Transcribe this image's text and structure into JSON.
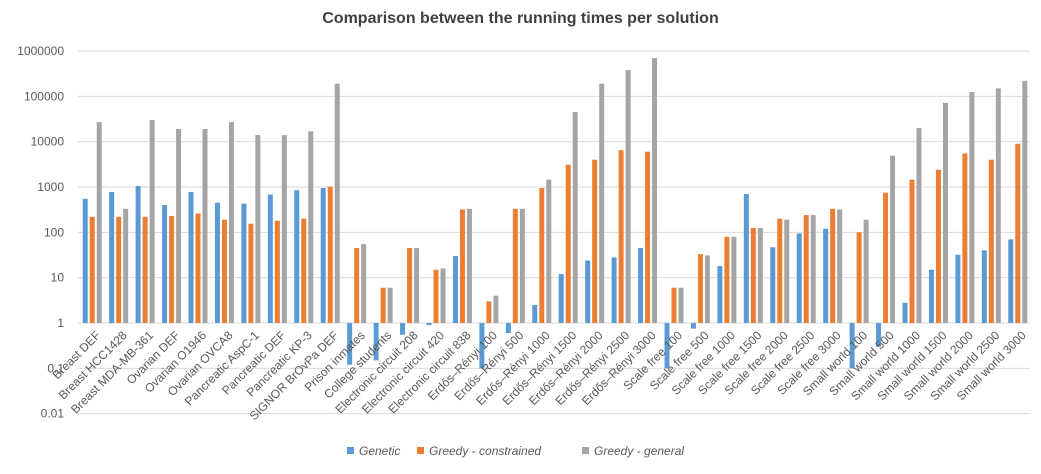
{
  "chart_data": {
    "type": "bar",
    "title": "Comparison between the running times per solution",
    "xlabel": "",
    "ylabel": "",
    "y_scale": "log",
    "ylim": [
      0.01,
      1000000
    ],
    "y_ticks": [
      0.01,
      0.1,
      1,
      10,
      100,
      1000,
      10000,
      100000,
      1000000
    ],
    "y_tick_labels": [
      "0.01",
      "0.1",
      "1",
      "10",
      "100",
      "1000",
      "10000",
      "100000",
      "1000000"
    ],
    "grid": true,
    "legend_position": "bottom",
    "categories": [
      "Breast DEF",
      "Breast HCC1428",
      "Breast MDA-MB-361",
      "Ovarian DEF",
      "Ovarian O1946",
      "Ovarian OVCA8",
      "Pancreatic AspC-1",
      "Pancreatic DEF",
      "Pancreatic KP-3",
      "SIGNOR BrOvPa DEF",
      "Prison inmates",
      "College students",
      "Electronic circuit 208",
      "Electronic circuit 420",
      "Electronic circuit 838",
      "Erdős–Rényi 100",
      "Erdős–Rényi 500",
      "Erdős–Rényi 1000",
      "Erdős–Rényi 1500",
      "Erdős–Rényi 2000",
      "Erdős–Rényi 2500",
      "Erdős–Rényi 3000",
      "Scale free 100",
      "Scale free 500",
      "Scale free 1000",
      "Scale free 1500",
      "Scale free 2000",
      "Scale free 2500",
      "Scale free 3000",
      "Small world 100",
      "Small world 500",
      "Small world 1000",
      "Small world 1500",
      "Small world 2000",
      "Small world 2500",
      "Small world 3000"
    ],
    "series": [
      {
        "name": "Genetic",
        "color": "#5B9BD5",
        "values": [
          550,
          780,
          1050,
          400,
          780,
          450,
          430,
          680,
          850,
          950,
          0.12,
          0.15,
          0.55,
          0.9,
          30,
          0.1,
          0.6,
          2.5,
          12,
          24,
          28,
          45,
          0.1,
          0.75,
          18,
          700,
          47,
          95,
          120,
          0.1,
          0.3,
          2.8,
          15,
          32,
          40,
          70
        ]
      },
      {
        "name": "Greedy - constrained",
        "color": "#ED7D31",
        "values": [
          220,
          220,
          220,
          230,
          260,
          190,
          155,
          180,
          200,
          1020,
          45,
          6,
          45,
          15,
          320,
          3,
          330,
          950,
          3100,
          4000,
          6500,
          6000,
          6,
          33,
          80,
          125,
          200,
          240,
          330,
          100,
          750,
          1450,
          2400,
          5500,
          4000,
          9000
        ]
      },
      {
        "name": "Greedy - general",
        "color": "#A5A5A5",
        "values": [
          27000,
          330,
          30000,
          19000,
          19000,
          27000,
          14000,
          14000,
          17000,
          190000,
          55,
          6,
          45,
          16,
          330,
          4,
          330,
          1450,
          45000,
          190000,
          380000,
          700000,
          6,
          31,
          80,
          125,
          190,
          240,
          320,
          190,
          4900,
          20000,
          72000,
          125000,
          150000,
          220000
        ]
      }
    ]
  }
}
